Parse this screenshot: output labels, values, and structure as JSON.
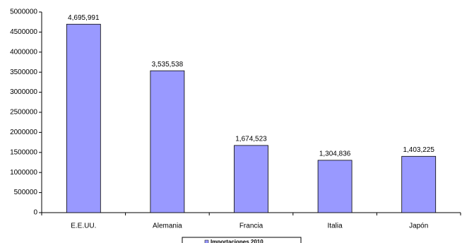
{
  "chart_data": {
    "type": "bar",
    "categories": [
      "E.E.UU.",
      "Alemania",
      "Francia",
      "Italia",
      "Japón"
    ],
    "series": [
      {
        "name": "Importaciones 2010",
        "color": "#9999ff",
        "values": [
          4695991,
          3535538,
          1674523,
          1304836,
          1403225
        ],
        "value_labels": [
          "4,695,991",
          "3,535,538",
          "1,674,523",
          "1,304,836",
          "1,403,225"
        ]
      }
    ],
    "ylim": [
      0,
      5000000
    ],
    "yticks": [
      0,
      500000,
      1000000,
      1500000,
      2000000,
      2500000,
      3000000,
      3500000,
      4000000,
      4500000,
      5000000
    ],
    "grid": false,
    "legend": "bottom"
  }
}
